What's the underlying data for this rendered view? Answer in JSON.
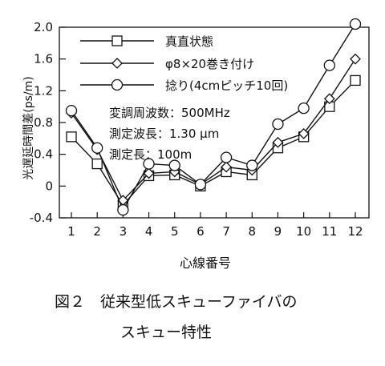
{
  "chart_data": {
    "type": "line",
    "categories": [
      "1",
      "2",
      "3",
      "4",
      "5",
      "6",
      "7",
      "8",
      "9",
      "10",
      "11",
      "12"
    ],
    "ylabel": "光遅延時間差(ps/m)",
    "xlabel": "心線番号",
    "ylim": [
      -0.4,
      2.0
    ],
    "yticks": [
      "2.0",
      "1.6",
      "1.2",
      "0.8",
      "0.4",
      "0",
      "-0.4"
    ],
    "ytick_values": [
      2.0,
      1.6,
      1.2,
      0.8,
      0.4,
      0,
      -0.4
    ],
    "grid": false,
    "legend_position": "top-left",
    "series": [
      {
        "name": "真直状態",
        "marker": "square",
        "values": [
          0.62,
          0.28,
          -0.24,
          0.13,
          0.14,
          0.0,
          0.18,
          0.14,
          0.48,
          0.62,
          1.0,
          1.33
        ]
      },
      {
        "name": "φ8×20巻き付け",
        "marker": "diamond",
        "values": [
          0.92,
          0.46,
          -0.18,
          0.16,
          0.18,
          0.02,
          0.24,
          0.2,
          0.55,
          0.66,
          1.1,
          1.6
        ]
      },
      {
        "name": "捻り(4cmピッチ10回)",
        "marker": "circle",
        "values": [
          0.95,
          0.48,
          -0.3,
          0.28,
          0.26,
          0.02,
          0.36,
          0.26,
          0.78,
          0.98,
          1.52,
          2.04
        ]
      }
    ],
    "annotations": [
      "変調周波数：500MHz",
      "測定波長：1.30 μm",
      "測定長：100m"
    ]
  },
  "caption": {
    "line1": "図２　従来型低スキューファイバの",
    "line2": "スキュー特性"
  }
}
